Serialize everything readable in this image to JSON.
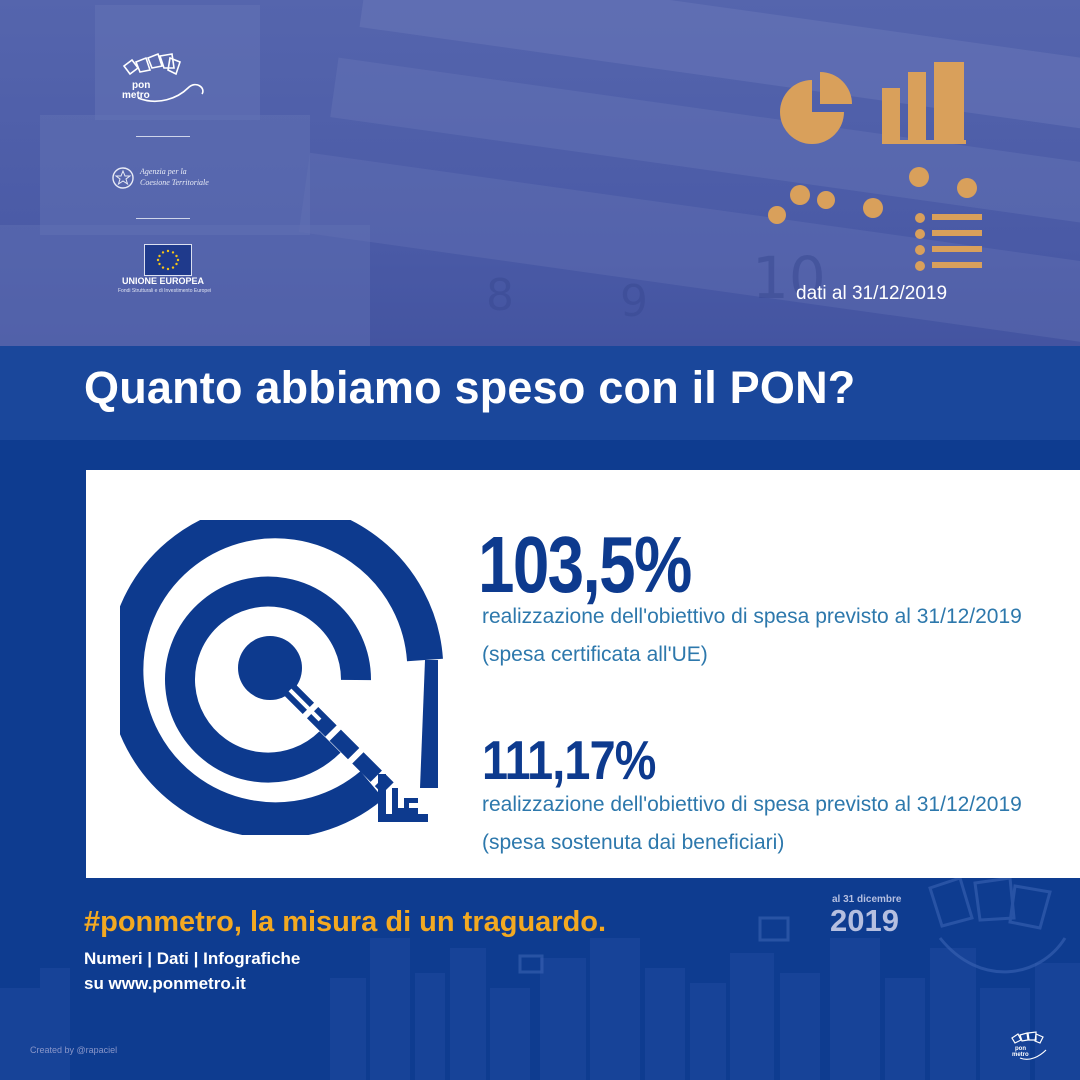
{
  "header": {
    "logo_text": "pon metro",
    "agency_line1": "Agenzia per la",
    "agency_line2": "Coesione Territoriale",
    "eu_title": "UNIONE EUROPEA",
    "eu_subtitle": "Fondi Strutturali e di Investimento Europei",
    "date_note": "dati al 31/12/2019",
    "ruler_digits": [
      "8",
      "9",
      "10"
    ]
  },
  "title": "Quanto abbiamo speso con il PON?",
  "stats": [
    {
      "value": "103,5%",
      "description": "realizzazione dell'obiettivo di spesa previsto al 31/12/2019 (spesa certificata all'UE)"
    },
    {
      "value": "111,17%",
      "description": "realizzazione dell'obiettivo di spesa previsto al 31/12/2019 (spesa sostenuta dai beneficiari)"
    }
  ],
  "footer": {
    "hashtag": "#ponmetro, la misura di un traguardo.",
    "line1": "Numeri | Dati | Infografiche",
    "line2": "su www.ponmetro.it",
    "badge_small": "al 31 dicembre",
    "badge_year": "2019",
    "credit": "Created by @rapaciel",
    "mini_logo_text": "pon metro"
  },
  "colors": {
    "brand_blue": "#0d3a8e",
    "accent_orange": "#f3a921",
    "icon_gold": "#d9a05b",
    "desc_blue": "#2d78ac"
  },
  "icons": [
    "pie-chart-icon",
    "bar-chart-icon",
    "scatter-dots-icon",
    "list-icon",
    "target-icon",
    "eu-flag-icon",
    "italian-emblem-icon"
  ]
}
